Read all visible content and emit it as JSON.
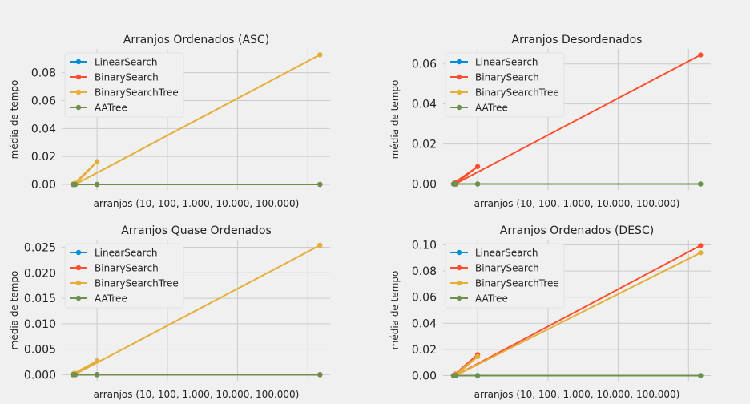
{
  "chart_data": [
    {
      "type": "line",
      "title": "Arranjos Ordenados (ASC)",
      "xlabel": "arranjos (10, 100, 1.000, 10.000, 100.000)",
      "ylabel": "média de tempo",
      "x": [
        10,
        100,
        1000,
        10000,
        100000
      ],
      "ylim": [
        -0.004,
        0.097
      ],
      "yticks": [
        "0.00",
        "0.02",
        "0.04",
        "0.06",
        "0.08"
      ],
      "grid": true,
      "legend": "top-left",
      "series": [
        {
          "name": "LinearSearch",
          "color": "#008fd5",
          "values": [
            0,
            0,
            0,
            0,
            0
          ]
        },
        {
          "name": "BinarySearch",
          "color": "#fc4f30",
          "values": [
            0,
            0,
            0,
            0,
            0
          ]
        },
        {
          "name": "BinarySearchTree",
          "color": "#e5ae38",
          "values": [
            0.0001,
            0.0008,
            0.0163,
            0.0001,
            0.0928
          ]
        },
        {
          "name": "AATree",
          "color": "#6d904f",
          "values": [
            0,
            0,
            0,
            0,
            0
          ]
        }
      ]
    },
    {
      "type": "line",
      "title": "Arranjos Desordenados",
      "xlabel": "arranjos (10, 100, 1.000, 10.000, 100.000)",
      "ylabel": "média de tempo",
      "x": [
        10,
        100,
        1000,
        10000,
        100000
      ],
      "ylim": [
        -0.003,
        0.0675
      ],
      "yticks": [
        "0.00",
        "0.02",
        "0.04",
        "0.06"
      ],
      "grid": true,
      "legend": "top-left",
      "series": [
        {
          "name": "LinearSearch",
          "color": "#008fd5",
          "values": [
            0,
            0,
            0,
            0,
            0
          ]
        },
        {
          "name": "BinarySearch",
          "color": "#fc4f30",
          "values": [
            0.0001,
            0.0009,
            0.0087,
            0.0002,
            0.0645
          ]
        },
        {
          "name": "BinarySearchTree",
          "color": "#e5ae38",
          "values": [
            0,
            0,
            0,
            0,
            0
          ]
        },
        {
          "name": "AATree",
          "color": "#6d904f",
          "values": [
            0,
            0,
            0,
            0,
            0
          ]
        }
      ]
    },
    {
      "type": "line",
      "title": "Arranjos Quase Ordenados",
      "xlabel": "arranjos (10, 100, 1.000, 10.000, 100.000)",
      "ylabel": "média de tempo",
      "x": [
        10,
        100,
        1000,
        10000,
        100000
      ],
      "ylim": [
        -0.0012,
        0.0265
      ],
      "yticks": [
        "0.000",
        "0.005",
        "0.010",
        "0.015",
        "0.020",
        "0.025"
      ],
      "grid": true,
      "legend": "top-left",
      "series": [
        {
          "name": "LinearSearch",
          "color": "#008fd5",
          "values": [
            0,
            0,
            0,
            0,
            0
          ]
        },
        {
          "name": "BinarySearch",
          "color": "#fc4f30",
          "values": [
            0,
            0,
            0,
            0,
            0
          ]
        },
        {
          "name": "BinarySearchTree",
          "color": "#e5ae38",
          "values": [
            0.0001,
            0.0003,
            0.0027,
            0.0001,
            0.0254
          ]
        },
        {
          "name": "AATree",
          "color": "#6d904f",
          "values": [
            0,
            0,
            0,
            0,
            0
          ]
        }
      ]
    },
    {
      "type": "line",
      "title": "Arranjos Ordenados (DESC)",
      "xlabel": "arranjos (10, 100, 1.000, 10.000, 100.000)",
      "ylabel": "média de tempo",
      "x": [
        10,
        100,
        1000,
        10000,
        100000
      ],
      "ylim": [
        -0.004,
        0.104
      ],
      "yticks": [
        "0.00",
        "0.02",
        "0.04",
        "0.06",
        "0.08",
        "0.10"
      ],
      "grid": true,
      "legend": "top-left",
      "series": [
        {
          "name": "LinearSearch",
          "color": "#008fd5",
          "values": [
            0,
            0,
            0,
            0,
            0
          ]
        },
        {
          "name": "BinarySearch",
          "color": "#fc4f30",
          "values": [
            0.0001,
            0.0012,
            0.016,
            0.0002,
            0.0995
          ]
        },
        {
          "name": "BinarySearchTree",
          "color": "#e5ae38",
          "values": [
            0.0001,
            0.0007,
            0.0145,
            0.0001,
            0.094
          ]
        },
        {
          "name": "AATree",
          "color": "#6d904f",
          "values": [
            0,
            0,
            0,
            0,
            0
          ]
        }
      ]
    }
  ]
}
